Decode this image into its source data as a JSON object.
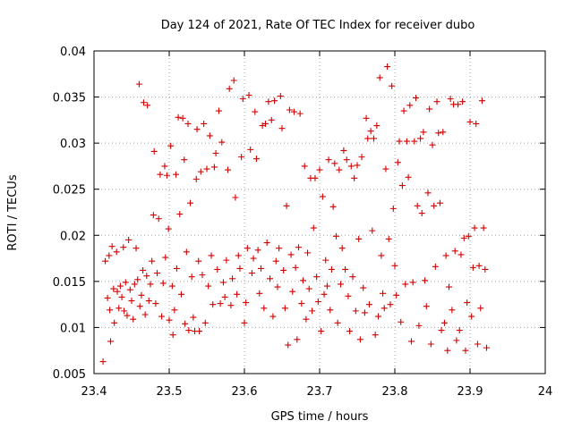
{
  "chart_data": {
    "type": "scatter",
    "title": "Day 124 of 2021, Rate Of TEC Index for receiver dubo",
    "xlabel": "GPS time / hours",
    "ylabel": "ROTI / TECUs",
    "xlim": [
      23.4,
      24.0
    ],
    "ylim": [
      0.005,
      0.04
    ],
    "grid": true,
    "marker": "+",
    "color": "#d40000",
    "x_ticks": [
      "23.4",
      "23.5",
      "23.6",
      "23.7",
      "23.8",
      "23.9",
      "24"
    ],
    "y_ticks": [
      "0.005",
      "0.01",
      "0.015",
      "0.02",
      "0.025",
      "0.03",
      "0.035",
      "0.04"
    ],
    "series": [
      {
        "name": "ROTI",
        "points": [
          [
            23.412,
            0.0063
          ],
          [
            23.415,
            0.0172
          ],
          [
            23.418,
            0.0132
          ],
          [
            23.42,
            0.0178
          ],
          [
            23.421,
            0.0119
          ],
          [
            23.422,
            0.0085
          ],
          [
            23.424,
            0.0188
          ],
          [
            23.426,
            0.0142
          ],
          [
            23.427,
            0.0105
          ],
          [
            23.43,
            0.0182
          ],
          [
            23.431,
            0.0139
          ],
          [
            23.433,
            0.0121
          ],
          [
            23.435,
            0.0145
          ],
          [
            23.437,
            0.0133
          ],
          [
            23.439,
            0.0187
          ],
          [
            23.44,
            0.0118
          ],
          [
            23.442,
            0.0149
          ],
          [
            23.444,
            0.0113
          ],
          [
            23.446,
            0.0195
          ],
          [
            23.448,
            0.0141
          ],
          [
            23.45,
            0.0129
          ],
          [
            23.452,
            0.0109
          ],
          [
            23.454,
            0.0147
          ],
          [
            23.456,
            0.0186
          ],
          [
            23.458,
            0.0152
          ],
          [
            23.46,
            0.0364
          ],
          [
            23.461,
            0.0123
          ],
          [
            23.463,
            0.0135
          ],
          [
            23.465,
            0.0162
          ],
          [
            23.466,
            0.0344
          ],
          [
            23.468,
            0.0114
          ],
          [
            23.47,
            0.0156
          ],
          [
            23.471,
            0.0341
          ],
          [
            23.473,
            0.0129
          ],
          [
            23.475,
            0.0147
          ],
          [
            23.477,
            0.0172
          ],
          [
            23.479,
            0.0222
          ],
          [
            23.48,
            0.0291
          ],
          [
            23.482,
            0.0126
          ],
          [
            23.484,
            0.0159
          ],
          [
            23.486,
            0.0218
          ],
          [
            23.488,
            0.0266
          ],
          [
            23.49,
            0.0112
          ],
          [
            23.492,
            0.0148
          ],
          [
            23.494,
            0.0275
          ],
          [
            23.495,
            0.0176
          ],
          [
            23.497,
            0.0265
          ],
          [
            23.499,
            0.0207
          ],
          [
            23.5,
            0.0108
          ],
          [
            23.502,
            0.0297
          ],
          [
            23.504,
            0.0145
          ],
          [
            23.505,
            0.0092
          ],
          [
            23.507,
            0.0119
          ],
          [
            23.509,
            0.0266
          ],
          [
            23.51,
            0.0164
          ],
          [
            23.512,
            0.0328
          ],
          [
            23.514,
            0.0223
          ],
          [
            23.516,
            0.0136
          ],
          [
            23.518,
            0.0327
          ],
          [
            23.52,
            0.0282
          ],
          [
            23.521,
            0.0104
          ],
          [
            23.523,
            0.0182
          ],
          [
            23.525,
            0.0321
          ],
          [
            23.526,
            0.0097
          ],
          [
            23.528,
            0.0235
          ],
          [
            23.53,
            0.0155
          ],
          [
            23.532,
            0.0111
          ],
          [
            23.534,
            0.0096
          ],
          [
            23.536,
            0.0261
          ],
          [
            23.537,
            0.0315
          ],
          [
            23.539,
            0.0172
          ],
          [
            23.54,
            0.0096
          ],
          [
            23.542,
            0.0269
          ],
          [
            23.544,
            0.0157
          ],
          [
            23.546,
            0.0321
          ],
          [
            23.548,
            0.0105
          ],
          [
            23.55,
            0.0272
          ],
          [
            23.552,
            0.0145
          ],
          [
            23.554,
            0.0308
          ],
          [
            23.556,
            0.0178
          ],
          [
            23.558,
            0.0125
          ],
          [
            23.56,
            0.0274
          ],
          [
            23.562,
            0.0289
          ],
          [
            23.564,
            0.0163
          ],
          [
            23.566,
            0.0335
          ],
          [
            23.568,
            0.0126
          ],
          [
            23.57,
            0.0301
          ],
          [
            23.572,
            0.0149
          ],
          [
            23.574,
            0.0133
          ],
          [
            23.576,
            0.0173
          ],
          [
            23.578,
            0.0271
          ],
          [
            23.58,
            0.0359
          ],
          [
            23.582,
            0.0124
          ],
          [
            23.584,
            0.0153
          ],
          [
            23.586,
            0.0368
          ],
          [
            23.588,
            0.0241
          ],
          [
            23.59,
            0.0136
          ],
          [
            23.592,
            0.0178
          ],
          [
            23.594,
            0.0164
          ],
          [
            23.596,
            0.0285
          ],
          [
            23.598,
            0.0348
          ],
          [
            23.6,
            0.0105
          ],
          [
            23.602,
            0.0127
          ],
          [
            23.604,
            0.0186
          ],
          [
            23.606,
            0.0352
          ],
          [
            23.608,
            0.0293
          ],
          [
            23.61,
            0.0159
          ],
          [
            23.612,
            0.0175
          ],
          [
            23.614,
            0.0334
          ],
          [
            23.616,
            0.0283
          ],
          [
            23.618,
            0.0184
          ],
          [
            23.62,
            0.0137
          ],
          [
            23.622,
            0.0164
          ],
          [
            23.624,
            0.0319
          ],
          [
            23.626,
            0.0121
          ],
          [
            23.628,
            0.0321
          ],
          [
            23.63,
            0.0192
          ],
          [
            23.632,
            0.0345
          ],
          [
            23.634,
            0.0153
          ],
          [
            23.636,
            0.0325
          ],
          [
            23.638,
            0.0112
          ],
          [
            23.64,
            0.0346
          ],
          [
            23.642,
            0.0172
          ],
          [
            23.644,
            0.0144
          ],
          [
            23.646,
            0.0186
          ],
          [
            23.648,
            0.0351
          ],
          [
            23.65,
            0.0316
          ],
          [
            23.652,
            0.0162
          ],
          [
            23.654,
            0.0121
          ],
          [
            23.656,
            0.0232
          ],
          [
            23.658,
            0.0081
          ],
          [
            23.66,
            0.0336
          ],
          [
            23.662,
            0.0179
          ],
          [
            23.664,
            0.0139
          ],
          [
            23.666,
            0.0334
          ],
          [
            23.668,
            0.0165
          ],
          [
            23.67,
            0.0087
          ],
          [
            23.672,
            0.0187
          ],
          [
            23.674,
            0.0332
          ],
          [
            23.676,
            0.0126
          ],
          [
            23.678,
            0.0151
          ],
          [
            23.68,
            0.0275
          ],
          [
            23.682,
            0.0109
          ],
          [
            23.684,
            0.0181
          ],
          [
            23.686,
            0.0142
          ],
          [
            23.688,
            0.0262
          ],
          [
            23.69,
            0.0118
          ],
          [
            23.692,
            0.0208
          ],
          [
            23.694,
            0.0262
          ],
          [
            23.696,
            0.0155
          ],
          [
            23.698,
            0.0128
          ],
          [
            23.7,
            0.0271
          ],
          [
            23.702,
            0.0096
          ],
          [
            23.704,
            0.0242
          ],
          [
            23.706,
            0.0136
          ],
          [
            23.708,
            0.0173
          ],
          [
            23.71,
            0.0145
          ],
          [
            23.712,
            0.0282
          ],
          [
            23.714,
            0.0119
          ],
          [
            23.716,
            0.0163
          ],
          [
            23.718,
            0.0231
          ],
          [
            23.72,
            0.0278
          ],
          [
            23.722,
            0.0199
          ],
          [
            23.724,
            0.0105
          ],
          [
            23.726,
            0.0271
          ],
          [
            23.728,
            0.0147
          ],
          [
            23.73,
            0.0186
          ],
          [
            23.732,
            0.0292
          ],
          [
            23.734,
            0.0163
          ],
          [
            23.736,
            0.0282
          ],
          [
            23.738,
            0.0134
          ],
          [
            23.74,
            0.0096
          ],
          [
            23.742,
            0.0275
          ],
          [
            23.744,
            0.0155
          ],
          [
            23.746,
            0.0262
          ],
          [
            23.748,
            0.0118
          ],
          [
            23.75,
            0.0276
          ],
          [
            23.752,
            0.0196
          ],
          [
            23.754,
            0.0087
          ],
          [
            23.756,
            0.0285
          ],
          [
            23.758,
            0.0143
          ],
          [
            23.76,
            0.0116
          ],
          [
            23.762,
            0.0327
          ],
          [
            23.764,
            0.0305
          ],
          [
            23.766,
            0.0125
          ],
          [
            23.768,
            0.0313
          ],
          [
            23.77,
            0.0205
          ],
          [
            23.772,
            0.0305
          ],
          [
            23.774,
            0.0092
          ],
          [
            23.776,
            0.0319
          ],
          [
            23.778,
            0.0112
          ],
          [
            23.78,
            0.0371
          ],
          [
            23.782,
            0.0178
          ],
          [
            23.784,
            0.0137
          ],
          [
            23.786,
            0.0121
          ],
          [
            23.788,
            0.0272
          ],
          [
            23.79,
            0.0383
          ],
          [
            23.792,
            0.0196
          ],
          [
            23.794,
            0.0125
          ],
          [
            23.796,
            0.0362
          ],
          [
            23.798,
            0.0229
          ],
          [
            23.8,
            0.0167
          ],
          [
            23.802,
            0.0135
          ],
          [
            23.804,
            0.0279
          ],
          [
            23.806,
            0.0302
          ],
          [
            23.808,
            0.0106
          ],
          [
            23.81,
            0.0254
          ],
          [
            23.812,
            0.0335
          ],
          [
            23.814,
            0.0147
          ],
          [
            23.816,
            0.0302
          ],
          [
            23.818,
            0.0263
          ],
          [
            23.82,
            0.0341
          ],
          [
            23.822,
            0.0085
          ],
          [
            23.824,
            0.0149
          ],
          [
            23.826,
            0.0302
          ],
          [
            23.828,
            0.0349
          ],
          [
            23.83,
            0.0232
          ],
          [
            23.832,
            0.0102
          ],
          [
            23.834,
            0.0305
          ],
          [
            23.836,
            0.0224
          ],
          [
            23.838,
            0.0312
          ],
          [
            23.84,
            0.0151
          ],
          [
            23.842,
            0.0123
          ],
          [
            23.844,
            0.0246
          ],
          [
            23.846,
            0.0337
          ],
          [
            23.848,
            0.0082
          ],
          [
            23.85,
            0.0298
          ],
          [
            23.852,
            0.0232
          ],
          [
            23.854,
            0.0166
          ],
          [
            23.856,
            0.0345
          ],
          [
            23.858,
            0.0311
          ],
          [
            23.86,
            0.0235
          ],
          [
            23.862,
            0.0097
          ],
          [
            23.864,
            0.0312
          ],
          [
            23.866,
            0.0105
          ],
          [
            23.868,
            0.0178
          ],
          [
            23.87,
            0.0075
          ],
          [
            23.872,
            0.0144
          ],
          [
            23.874,
            0.0348
          ],
          [
            23.876,
            0.0119
          ],
          [
            23.878,
            0.0342
          ],
          [
            23.88,
            0.0183
          ],
          [
            23.882,
            0.0086
          ],
          [
            23.884,
            0.0342
          ],
          [
            23.886,
            0.0097
          ],
          [
            23.888,
            0.0179
          ],
          [
            23.89,
            0.0345
          ],
          [
            23.892,
            0.0197
          ],
          [
            23.894,
            0.0075
          ],
          [
            23.896,
            0.0127
          ],
          [
            23.898,
            0.0199
          ],
          [
            23.9,
            0.0323
          ],
          [
            23.902,
            0.0112
          ],
          [
            23.904,
            0.0165
          ],
          [
            23.906,
            0.0208
          ],
          [
            23.908,
            0.0321
          ],
          [
            23.91,
            0.0082
          ],
          [
            23.912,
            0.0167
          ],
          [
            23.914,
            0.0121
          ],
          [
            23.916,
            0.0346
          ],
          [
            23.918,
            0.0208
          ],
          [
            23.92,
            0.0163
          ],
          [
            23.922,
            0.0078
          ]
        ]
      }
    ]
  }
}
